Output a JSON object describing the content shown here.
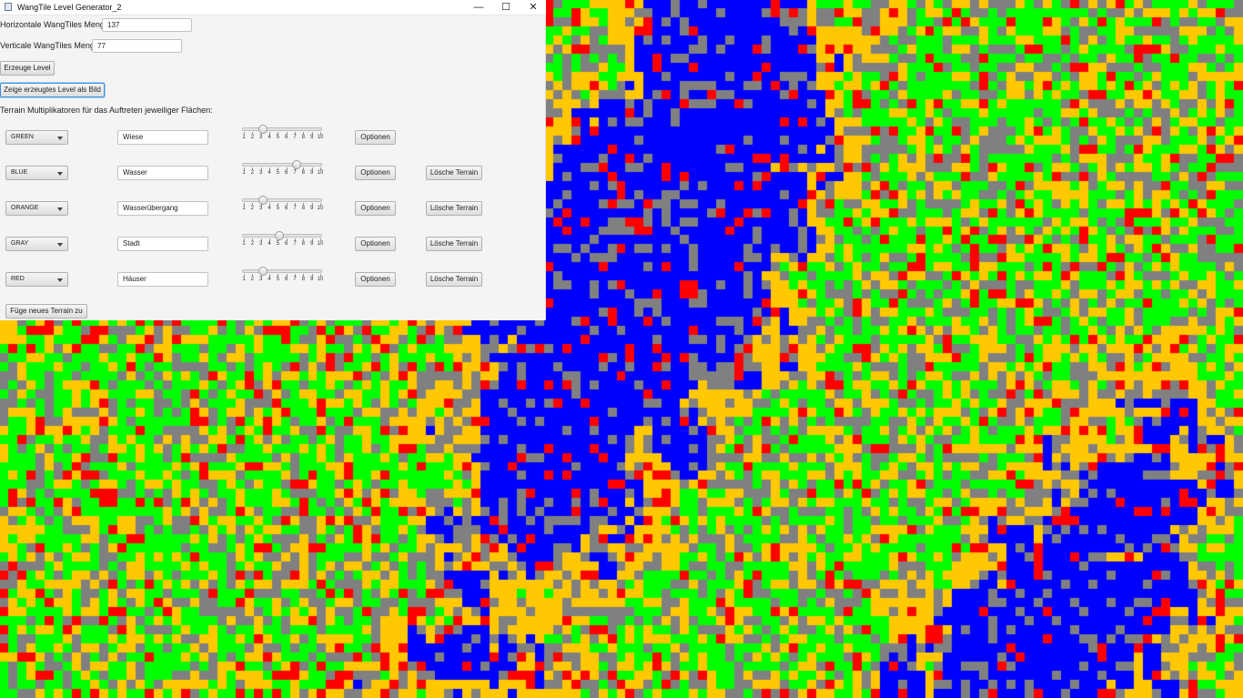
{
  "window": {
    "title": "WangTile Level Generator_2",
    "controls": {
      "minimize": "—",
      "maximize": "☐",
      "close": "✕"
    }
  },
  "fields": {
    "horizontal_label": "Horizontale WangTiles Menge:",
    "horizontal_value": "137",
    "vertical_label": "Verticale WangTiles Menge:",
    "vertical_value": "77"
  },
  "buttons": {
    "generate": "Erzeuge Level",
    "show_image": "Zeige erzeugtes Level als Bild",
    "add_terrain": "Füge neues Terrain zu"
  },
  "terrain_heading": "Terrain Multiplikatoren für das Auftreten jeweiliger Flächen:",
  "slider_ticks": [
    "1",
    "2",
    "3",
    "4",
    "5",
    "6",
    "7",
    "8",
    "9",
    "10"
  ],
  "terrains": [
    {
      "color_name": "GREEN",
      "name": "Wiese",
      "multiplier": 3,
      "options_label": "Optionen",
      "delete_label": ""
    },
    {
      "color_name": "BLUE",
      "name": "Wasser",
      "multiplier": 7,
      "options_label": "Optionen",
      "delete_label": "Lösche Terrain"
    },
    {
      "color_name": "ORANGE",
      "name": "Wasserübergang",
      "multiplier": 3,
      "options_label": "Optionen",
      "delete_label": "Lösche Terrain"
    },
    {
      "color_name": "GRAY",
      "name": "Stadt",
      "multiplier": 5,
      "options_label": "Optionen",
      "delete_label": "Lösche Terrain"
    },
    {
      "color_name": "RED",
      "name": "Häuser",
      "multiplier": 3,
      "options_label": "Optionen",
      "delete_label": "Lösche Terrain"
    }
  ],
  "tile_colors": {
    "green": "#00ff00",
    "blue": "#0000ff",
    "orange": "#ffc800",
    "gray": "#808080",
    "red": "#ff0000"
  },
  "grid": {
    "columns": 137,
    "rows": 77
  }
}
